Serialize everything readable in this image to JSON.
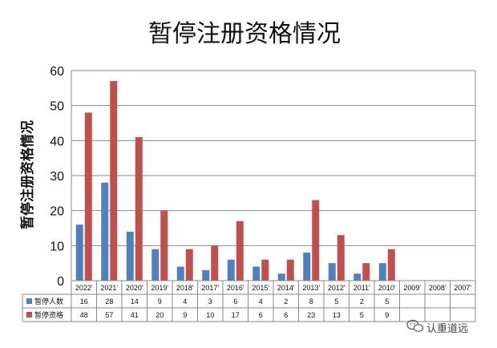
{
  "chart_data": {
    "type": "bar",
    "title": "暂停注册资格情况",
    "ylabel": "暂停注册资格情况",
    "xlabel": "",
    "ylim": [
      0,
      60
    ],
    "yticks": [
      0,
      10,
      20,
      30,
      40,
      50,
      60
    ],
    "grid": true,
    "legend": "table-bottom",
    "categories": [
      "2022'",
      "2021'",
      "2020'",
      "2019'",
      "2018'",
      "2017'",
      "2016'",
      "2015'",
      "2014'",
      "2013'",
      "2012'",
      "2011'",
      "2010'",
      "2009'",
      "2008'",
      "2007'"
    ],
    "series": [
      {
        "name": "暂停人数",
        "color": "#4F81BD",
        "values": [
          16,
          28,
          14,
          9,
          4,
          3,
          6,
          4,
          2,
          8,
          5,
          2,
          5,
          null,
          null,
          null
        ]
      },
      {
        "name": "暂停资格",
        "color": "#C0504D",
        "values": [
          48,
          57,
          41,
          20,
          9,
          10,
          17,
          6,
          6,
          23,
          13,
          5,
          9,
          null,
          null,
          null
        ]
      }
    ]
  },
  "watermark": {
    "text": "认重道远",
    "icon": "wechat-icon"
  }
}
